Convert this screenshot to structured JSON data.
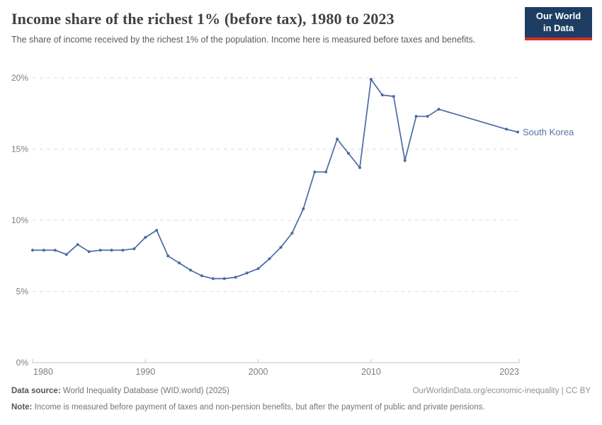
{
  "header": {
    "title": "Income share of the richest 1% (before tax), 1980 to 2023",
    "subtitle": "The share of income received by the richest 1% of the population. Income here is measured before taxes and benefits.",
    "logo": {
      "line1": "Our World",
      "line2": "in Data",
      "bg": "#1d3d63",
      "accent": "#d2302c"
    }
  },
  "chart_data": {
    "type": "line",
    "title": "Income share of the richest 1% (before tax), 1980 to 2023",
    "xlabel": "",
    "ylabel": "",
    "xlim": [
      1980,
      2023
    ],
    "ylim": [
      0,
      20
    ],
    "x_ticks": [
      1980,
      1990,
      2000,
      2010,
      2023
    ],
    "y_ticks": [
      0,
      5,
      10,
      15,
      20
    ],
    "y_tick_suffix": "%",
    "grid": "horizontal-dashed",
    "legend_position": "end-of-line-label",
    "colors": {
      "grid": "#dedede",
      "axis": "#c6c6c6",
      "tick_label": "#7e7e7e"
    },
    "series": [
      {
        "name": "South Korea",
        "color": "#4a6ba3",
        "label_color": "#5577a8",
        "points": [
          [
            1980,
            7.9
          ],
          [
            1981,
            7.9
          ],
          [
            1982,
            7.9
          ],
          [
            1983,
            7.6
          ],
          [
            1984,
            8.3
          ],
          [
            1985,
            7.8
          ],
          [
            1986,
            7.9
          ],
          [
            1987,
            7.9
          ],
          [
            1988,
            7.9
          ],
          [
            1989,
            8.0
          ],
          [
            1990,
            8.8
          ],
          [
            1991,
            9.3
          ],
          [
            1992,
            7.5
          ],
          [
            1993,
            7.0
          ],
          [
            1994,
            6.5
          ],
          [
            1995,
            6.1
          ],
          [
            1996,
            5.9
          ],
          [
            1997,
            5.9
          ],
          [
            1998,
            6.0
          ],
          [
            1999,
            6.3
          ],
          [
            2000,
            6.6
          ],
          [
            2001,
            7.3
          ],
          [
            2002,
            8.1
          ],
          [
            2003,
            9.1
          ],
          [
            2004,
            10.8
          ],
          [
            2005,
            13.4
          ],
          [
            2006,
            13.4
          ],
          [
            2007,
            15.7
          ],
          [
            2008,
            14.7
          ],
          [
            2009,
            13.7
          ],
          [
            2010,
            19.9
          ],
          [
            2011,
            18.8
          ],
          [
            2012,
            18.7
          ],
          [
            2013,
            14.2
          ],
          [
            2014,
            17.3
          ],
          [
            2015,
            17.3
          ],
          [
            2016,
            17.8
          ],
          [
            2022,
            16.4
          ],
          [
            2023,
            16.2
          ]
        ]
      }
    ]
  },
  "footer": {
    "datasource_label": "Data source:",
    "datasource_text": " World Inequality Database (WID.world) (2025)",
    "right_text": "OurWorldinData.org/economic-inequality | CC BY",
    "note_label": "Note:",
    "note_text": " Income is measured before payment of taxes and non-pension benefits, but after the payment of public and private pensions."
  }
}
